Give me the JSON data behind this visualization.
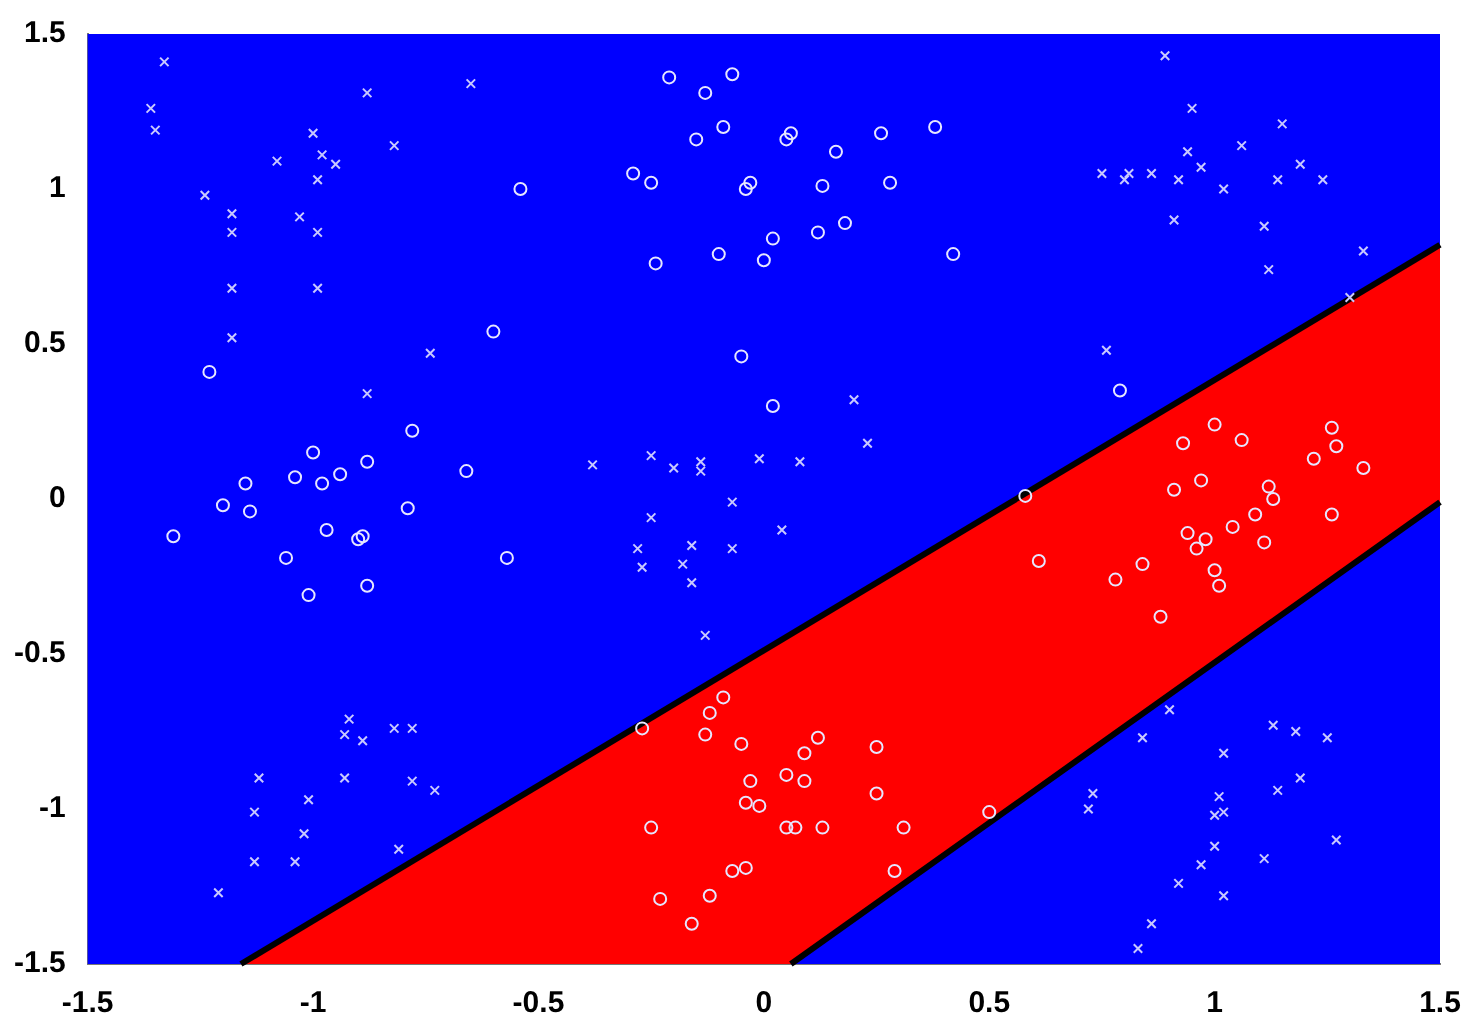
{
  "chart_data": {
    "type": "scatter",
    "xlim": [
      -1.5,
      1.5
    ],
    "ylim": [
      -1.5,
      1.5
    ],
    "xticks": [
      -1.5,
      -1,
      -0.5,
      0,
      0.5,
      1,
      1.5
    ],
    "yticks": [
      -1.5,
      -1,
      -0.5,
      0,
      0.5,
      1,
      1.5
    ],
    "grid": false,
    "series": [
      {
        "type": "area",
        "color": "#ff0000",
        "x": [
          -1.16,
          1.5
        ],
        "values": [
          -1.5,
          0.82
        ]
      },
      {
        "type": "area",
        "color": "#0000ff",
        "x": [
          0.06,
          1.5
        ],
        "values": [
          -1.5,
          -0.01
        ]
      },
      {
        "type": "scatter",
        "marker": "cross",
        "color": "#c8c8ff",
        "x": [
          -1.33,
          -0.88,
          -0.65,
          -1.36,
          -1.35,
          -1.0,
          -0.82,
          -0.98,
          -0.95,
          -1.08,
          -0.99,
          -1.24,
          -1.18,
          -1.03,
          -1.18,
          -0.99,
          -1.18,
          -0.99,
          -1.18,
          -0.74,
          -0.88,
          0.2,
          0.23,
          -0.38,
          -0.25,
          -0.2,
          -0.14,
          -0.14,
          -0.01,
          0.08,
          0.89,
          0.95,
          1.15,
          1.06,
          0.94,
          0.97,
          1.19,
          0.75,
          0.81,
          0.86,
          0.8,
          0.92,
          1.02,
          1.14,
          1.24,
          0.91,
          1.11,
          1.33,
          1.12,
          1.3,
          0.76,
          -0.92,
          -0.82,
          -0.78,
          -0.93,
          -0.89,
          -1.12,
          -0.93,
          -0.78,
          -0.73,
          -1.01,
          -1.13,
          -1.02,
          -0.81,
          -1.13,
          -1.04,
          -1.21,
          -0.25,
          -0.07,
          0.04,
          -0.28,
          -0.16,
          -0.07,
          -0.27,
          -0.18,
          -0.16,
          -0.13,
          0.9,
          0.84,
          1.13,
          1.18,
          1.25,
          1.02,
          1.19,
          1.14,
          0.73,
          0.72,
          1.01,
          1.0,
          1.02,
          1.27,
          1.0,
          1.11,
          0.97,
          0.92,
          1.02,
          0.86,
          0.83
        ],
        "values": [
          1.41,
          1.31,
          1.34,
          1.26,
          1.19,
          1.18,
          1.14,
          1.11,
          1.08,
          1.09,
          1.03,
          0.98,
          0.92,
          0.91,
          0.86,
          0.86,
          0.68,
          0.68,
          0.52,
          0.47,
          0.34,
          0.32,
          0.18,
          0.11,
          0.14,
          0.1,
          0.12,
          0.09,
          0.13,
          0.12,
          1.43,
          1.26,
          1.21,
          1.14,
          1.12,
          1.07,
          1.08,
          1.05,
          1.05,
          1.05,
          1.03,
          1.03,
          1.0,
          1.03,
          1.03,
          0.9,
          0.88,
          0.8,
          0.74,
          0.65,
          0.48,
          -0.71,
          -0.74,
          -0.74,
          -0.76,
          -0.78,
          -0.9,
          -0.9,
          -0.91,
          -0.94,
          -0.97,
          -1.01,
          -1.08,
          -1.13,
          -1.17,
          -1.17,
          -1.27,
          -0.06,
          -0.01,
          -0.1,
          -0.16,
          -0.15,
          -0.16,
          -0.22,
          -0.21,
          -0.27,
          -0.44,
          -0.68,
          -0.77,
          -0.73,
          -0.75,
          -0.77,
          -0.82,
          -0.9,
          -0.94,
          -0.95,
          -1.0,
          -0.96,
          -1.02,
          -1.01,
          -1.1,
          -1.12,
          -1.16,
          -1.18,
          -1.24,
          -1.28,
          -1.37,
          -1.45
        ]
      },
      {
        "type": "scatter",
        "marker": "circle",
        "color": "#e6e6ff",
        "x": [
          -0.54,
          -0.6,
          -1.23,
          -0.78,
          -1.0,
          -0.88,
          -0.66,
          -0.94,
          -1.04,
          -0.98,
          -1.15,
          -0.21,
          -0.07,
          -0.13,
          -0.09,
          -0.15,
          0.06,
          0.05,
          0.26,
          0.38,
          0.16,
          -0.29,
          -0.25,
          -0.03,
          -0.04,
          0.13,
          0.28,
          0.18,
          0.12,
          0.02,
          -0.1,
          -0.24,
          0.0,
          0.42,
          -0.05,
          0.02,
          0.79,
          0.58,
          1.0,
          1.26,
          1.06,
          0.93,
          1.27,
          1.22,
          1.33,
          0.97,
          0.91,
          1.12,
          1.13,
          -1.2,
          -1.14,
          -0.79,
          -1.31,
          -0.97,
          -0.89,
          -0.9,
          -1.06,
          -0.57,
          -1.01,
          -0.88,
          -0.27,
          -0.09,
          -0.12,
          -0.13,
          -0.05,
          0.12,
          0.09,
          0.25,
          -0.03,
          0.05,
          0.09,
          0.25,
          -0.04,
          -0.01,
          -0.25,
          0.05,
          0.07,
          0.13,
          0.31,
          -0.07,
          -0.04,
          0.29,
          -0.23,
          -0.12,
          -0.16,
          0.5,
          0.94,
          1.04,
          1.09,
          1.26,
          0.98,
          0.96,
          1.11,
          0.61,
          0.84,
          0.78,
          1.0,
          1.01,
          0.88
        ],
        "values": [
          1.0,
          0.54,
          0.41,
          0.22,
          0.15,
          0.12,
          0.09,
          0.08,
          0.07,
          0.05,
          0.05,
          1.36,
          1.37,
          1.31,
          1.2,
          1.16,
          1.18,
          1.16,
          1.18,
          1.2,
          1.12,
          1.05,
          1.02,
          1.02,
          1.0,
          1.01,
          1.02,
          0.89,
          0.86,
          0.84,
          0.79,
          0.76,
          0.77,
          0.79,
          0.46,
          0.3,
          0.35,
          0.01,
          0.24,
          0.23,
          0.19,
          0.18,
          0.17,
          0.13,
          0.1,
          0.06,
          0.03,
          0.04,
          0.0,
          -0.02,
          -0.04,
          -0.03,
          -0.12,
          -0.1,
          -0.12,
          -0.13,
          -0.19,
          -0.19,
          -0.31,
          -0.28,
          -0.74,
          -0.64,
          -0.69,
          -0.76,
          -0.79,
          -0.77,
          -0.82,
          -0.8,
          -0.91,
          -0.89,
          -0.91,
          -0.95,
          -0.98,
          -0.99,
          -1.06,
          -1.06,
          -1.06,
          -1.06,
          -1.06,
          -1.2,
          -1.19,
          -1.2,
          -1.29,
          -1.28,
          -1.37,
          -1.01,
          -0.11,
          -0.09,
          -0.05,
          -0.05,
          -0.13,
          -0.16,
          -0.14,
          -0.2,
          -0.21,
          -0.26,
          -0.23,
          -0.28,
          -0.38
        ]
      }
    ]
  }
}
